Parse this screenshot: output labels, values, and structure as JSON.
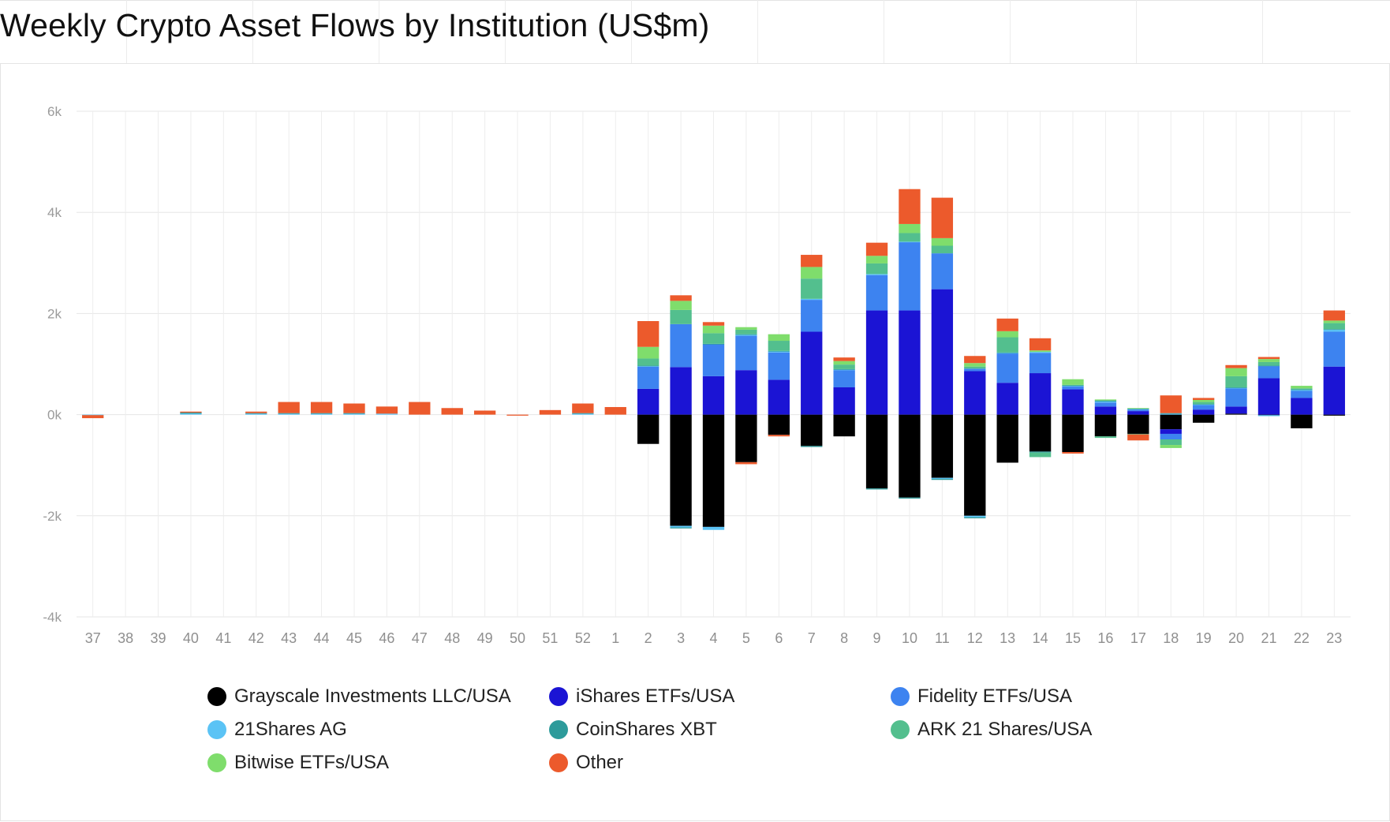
{
  "title": "Weekly Crypto Asset Flows by Institution (US$m)",
  "chart_data": {
    "type": "bar",
    "stacked": true,
    "title": "Weekly Crypto Asset Flows by Institution (US$m)",
    "xlabel": "",
    "ylabel": "",
    "ylim": [
      -4000,
      6000
    ],
    "yticks": [
      -4000,
      -2000,
      0,
      2000,
      4000,
      6000
    ],
    "ytick_labels": [
      "-4k",
      "-2k",
      "0k",
      "2k",
      "4k",
      "6k"
    ],
    "grid": true,
    "legend_position": "bottom",
    "categories": [
      "37",
      "38",
      "39",
      "40",
      "41",
      "42",
      "43",
      "44",
      "45",
      "46",
      "47",
      "48",
      "49",
      "50",
      "51",
      "52",
      "1",
      "2",
      "3",
      "4",
      "5",
      "6",
      "7",
      "8",
      "9",
      "10",
      "11",
      "12",
      "13",
      "14",
      "15",
      "16",
      "17",
      "18",
      "19",
      "20",
      "21",
      "22",
      "23"
    ],
    "series": [
      {
        "name": "Grayscale Investments LLC/USA",
        "color": "#000000",
        "values": [
          0,
          0,
          0,
          0,
          0,
          0,
          0,
          0,
          0,
          0,
          0,
          0,
          0,
          0,
          0,
          0,
          0,
          -579,
          -2200,
          -2220,
          -940,
          -400,
          -620,
          -430,
          -1460,
          -1640,
          -1250,
          -2000,
          -950,
          -730,
          -740,
          -430,
          -380,
          -290,
          -160,
          20,
          -10,
          -270,
          -20
        ]
      },
      {
        "name": "iShares ETFs/USA",
        "color": "#1b14d4",
        "values": [
          0,
          0,
          0,
          0,
          0,
          0,
          0,
          0,
          0,
          0,
          0,
          0,
          0,
          0,
          0,
          0,
          0,
          510,
          940,
          760,
          880,
          690,
          1640,
          540,
          2060,
          2060,
          2480,
          860,
          630,
          820,
          500,
          160,
          70,
          -90,
          100,
          140,
          720,
          330,
          950
        ]
      },
      {
        "name": "Fidelity ETFs/USA",
        "color": "#3d83f0",
        "values": [
          0,
          0,
          0,
          0,
          0,
          0,
          0,
          0,
          0,
          0,
          0,
          0,
          0,
          0,
          0,
          0,
          0,
          440,
          850,
          630,
          680,
          540,
          630,
          340,
          700,
          1350,
          710,
          50,
          580,
          400,
          60,
          80,
          30,
          -110,
          90,
          360,
          240,
          140,
          690
        ]
      },
      {
        "name": "21Shares AG",
        "color": "#5bc3f5",
        "values": [
          -10,
          0,
          0,
          20,
          0,
          20,
          20,
          20,
          20,
          20,
          0,
          0,
          0,
          0,
          0,
          20,
          0,
          10,
          -30,
          -60,
          20,
          20,
          20,
          10,
          20,
          10,
          -20,
          -30,
          10,
          20,
          10,
          20,
          10,
          20,
          10,
          10,
          -20,
          20,
          40
        ]
      },
      {
        "name": "CoinShares XBT",
        "color": "#2d9b9b",
        "values": [
          0,
          0,
          0,
          20,
          0,
          10,
          10,
          10,
          10,
          0,
          0,
          0,
          0,
          0,
          0,
          10,
          0,
          10,
          -20,
          10,
          10,
          10,
          -20,
          10,
          -20,
          -20,
          -20,
          -20,
          10,
          -20,
          10,
          20,
          10,
          10,
          10,
          10,
          10,
          10,
          10
        ]
      },
      {
        "name": "ARK 21 Shares/USA",
        "color": "#53bf8e",
        "values": [
          0,
          0,
          0,
          0,
          0,
          0,
          0,
          0,
          0,
          0,
          0,
          0,
          0,
          0,
          0,
          0,
          0,
          140,
          280,
          210,
          90,
          200,
          400,
          90,
          210,
          170,
          150,
          40,
          300,
          -90,
          10,
          -30,
          -10,
          -110,
          40,
          220,
          70,
          20,
          120
        ]
      },
      {
        "name": "Bitwise ETFs/USA",
        "color": "#7fdd6c",
        "values": [
          0,
          0,
          0,
          0,
          0,
          0,
          0,
          0,
          0,
          0,
          0,
          0,
          0,
          0,
          0,
          0,
          0,
          230,
          180,
          150,
          50,
          130,
          230,
          70,
          150,
          180,
          150,
          70,
          120,
          30,
          110,
          20,
          10,
          -60,
          40,
          160,
          60,
          50,
          50
        ]
      },
      {
        "name": "Other",
        "color": "#ec5a2c",
        "values": [
          -60,
          0,
          0,
          20,
          0,
          30,
          220,
          220,
          190,
          140,
          250,
          130,
          80,
          -20,
          90,
          190,
          150,
          510,
          110,
          70,
          -40,
          -30,
          240,
          70,
          260,
          690,
          800,
          140,
          250,
          240,
          -30,
          0,
          -120,
          350,
          40,
          60,
          40,
          0,
          200
        ]
      }
    ]
  },
  "legend": [
    {
      "label": "Grayscale Investments LLC/USA",
      "color": "#000000"
    },
    {
      "label": "iShares ETFs/USA",
      "color": "#1b14d4"
    },
    {
      "label": "Fidelity ETFs/USA",
      "color": "#3d83f0"
    },
    {
      "label": "21Shares AG",
      "color": "#5bc3f5"
    },
    {
      "label": "CoinShares XBT",
      "color": "#2d9b9b"
    },
    {
      "label": "ARK 21 Shares/USA",
      "color": "#53bf8e"
    },
    {
      "label": "Bitwise ETFs/USA",
      "color": "#7fdd6c"
    },
    {
      "label": "Other",
      "color": "#ec5a2c"
    }
  ]
}
